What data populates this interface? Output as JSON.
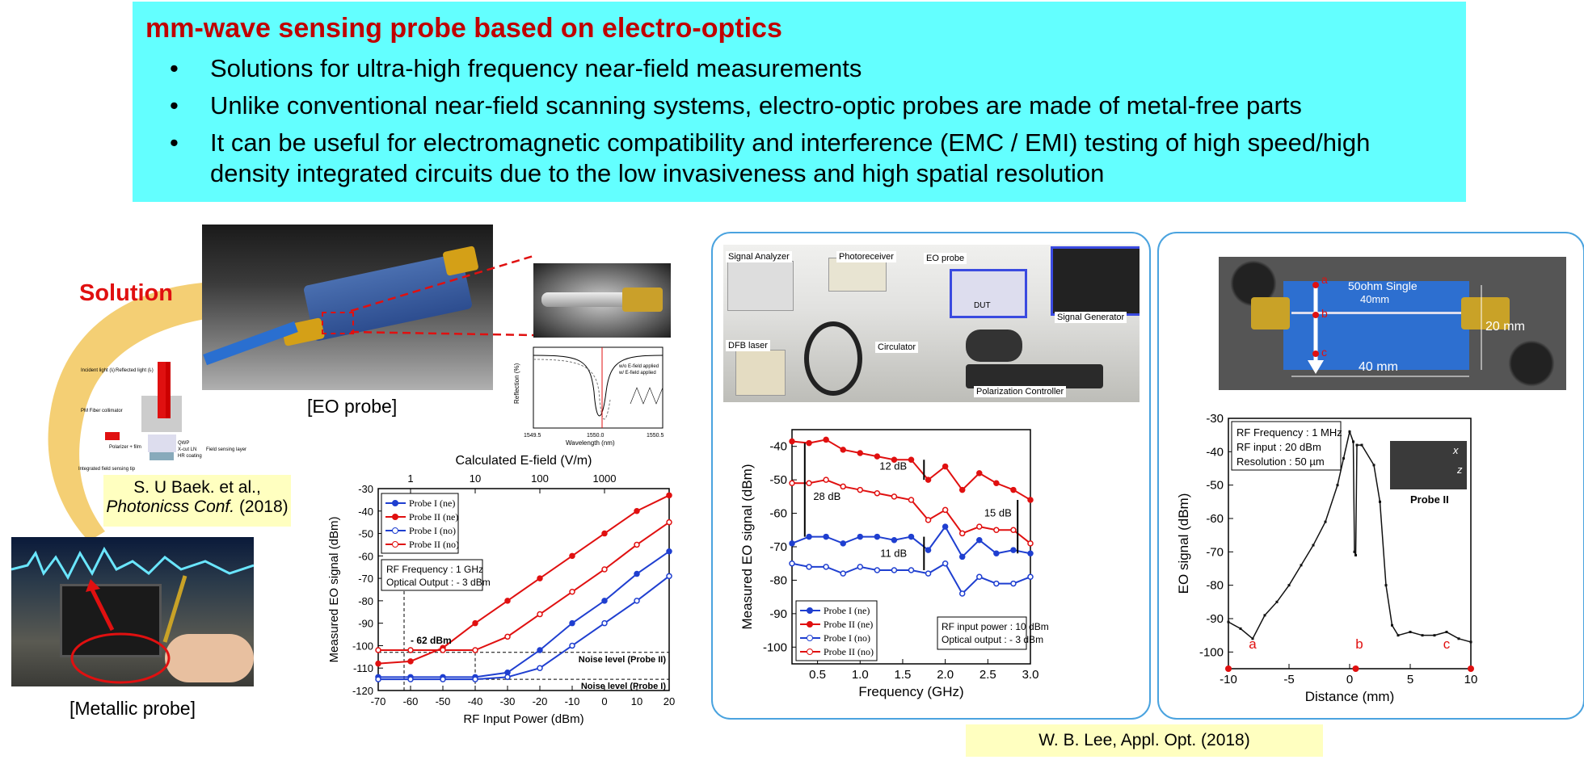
{
  "header": {
    "title": "mm-wave sensing probe based on electro-optics",
    "bullets": [
      "Solutions for ultra-high frequency near-field measurements",
      "Unlike conventional near-field scanning systems, electro-optic probes are made of metal-free parts",
      "It can be useful for electromagnetic compatibility and interference (EMC / EMI) testing of high speed/high density integrated circuits due to the low invasiveness and high spatial resolution"
    ]
  },
  "left": {
    "solution_label": "Solution",
    "eo_probe_caption": "[EO probe]",
    "metallic_probe_caption": "[Metallic probe]",
    "citation_line1": "S. U Baek. et al.,",
    "citation_journal": "Photonicss Conf.",
    "citation_year": " (2018)",
    "schematic": {
      "incident": "Incident light (Iᵢ)",
      "reflected": "Reflected light (Iᵣ)",
      "collimator": "PM Fiber collimator",
      "polarizer": "Polarizer + film",
      "qwp": "QWP",
      "xcut": "X-cut LN",
      "hr": "HR coating",
      "sensing_tip": "Integrated field sensing tip",
      "field_layer": "Field sensing layer"
    },
    "inset": {
      "ylabel": "Reflection (%)",
      "xlabel": "Wavelength (nm)",
      "tick_left": "1549.5",
      "tick_mid": "1550.0",
      "tick_right": "1550.5",
      "legend_a": "w/o E-field applied",
      "legend_b": "w/ E-field applied"
    }
  },
  "colors": {
    "probe_ne": "#1f3fd0",
    "probe2_ne": "#e01010",
    "accent_red": "#c00000",
    "header_bg": "#63ffff",
    "panel_border": "#4aa3df"
  },
  "chart1": {
    "title": "Calculated E-field (V/m)",
    "top_ticks": [
      "1",
      "10",
      "100",
      "1000"
    ],
    "xlabel": "RF Input Power (dBm)",
    "ylabel": "Measured EO signal (dBm)",
    "xticks": [
      "-70",
      "-60",
      "-50",
      "-40",
      "-30",
      "-20",
      "-10",
      "0",
      "10",
      "20"
    ],
    "yticks": [
      "-30",
      "-40",
      "-50",
      "-60",
      "-70",
      "-80",
      "-90",
      "-100",
      "-110",
      "-120"
    ],
    "legend": [
      "Probe I  (ne)",
      "Probe II (ne)",
      "Probe I  (no)",
      "Probe II (no)"
    ],
    "box_line1": "RF Frequency : 1 GHz",
    "box_line2": "Optical Output : - 3 dBm",
    "annot_62": "- 62 dBm",
    "noise2": "Noise level (Probe II)",
    "noise1": "Noise level (Probe I)"
  },
  "chart_data": [
    {
      "type": "line",
      "title": "",
      "top_axis_label": "Calculated E-field (V/m)",
      "xlabel": "RF Input Power (dBm)",
      "ylabel": "Measured EO signal (dBm)",
      "xlim": [
        -70,
        20
      ],
      "ylim": [
        -120,
        -30
      ],
      "x": [
        -70,
        -60,
        -50,
        -40,
        -30,
        -20,
        -10,
        0,
        10,
        20
      ],
      "series": [
        {
          "name": "Probe I (ne)",
          "values": [
            -114,
            -114,
            -114,
            -114,
            -112,
            -102,
            -90,
            -80,
            -68,
            -58
          ]
        },
        {
          "name": "Probe II (ne)",
          "values": [
            -108,
            -107,
            -101,
            -90,
            -80,
            -70,
            -60,
            -50,
            -40,
            -33
          ]
        },
        {
          "name": "Probe I (no)",
          "values": [
            -115,
            -115,
            -115,
            -115,
            -114,
            -110,
            -100,
            -90,
            -80,
            -69
          ]
        },
        {
          "name": "Probe II (no)",
          "values": [
            -102,
            -102,
            -102,
            -102,
            -96,
            -86,
            -76,
            -66,
            -55,
            -45
          ]
        }
      ]
    },
    {
      "type": "line",
      "title": "",
      "xlabel": "Frequency (GHz)",
      "ylabel": "Measured EO signal (dBm)",
      "xlim": [
        0.2,
        3.0
      ],
      "ylim": [
        -105,
        -35
      ],
      "x": [
        0.2,
        0.4,
        0.6,
        0.8,
        1.0,
        1.2,
        1.4,
        1.6,
        1.8,
        2.0,
        2.2,
        2.4,
        2.6,
        2.8,
        3.0
      ],
      "series": [
        {
          "name": "Probe I (ne)",
          "values": [
            -69,
            -67,
            -67,
            -69,
            -67,
            -67,
            -68,
            -67,
            -71,
            -64,
            -73,
            -68,
            -72,
            -71,
            -72
          ]
        },
        {
          "name": "Probe II (ne)",
          "values": [
            -38.5,
            -39,
            -38,
            -41,
            -42,
            -43,
            -44,
            -44,
            -50,
            -46,
            -53,
            -48,
            -51,
            -53,
            -56
          ]
        },
        {
          "name": "Probe I (no)",
          "values": [
            -75,
            -76,
            -76,
            -78,
            -76,
            -77,
            -77,
            -77,
            -78,
            -75,
            -84,
            -79,
            -81,
            -81,
            -79
          ]
        },
        {
          "name": "Probe II (no)",
          "values": [
            -51,
            -51,
            -50,
            -52,
            -53,
            -54,
            -55,
            -56,
            -62,
            -59,
            -66,
            -64,
            -65,
            -65,
            -69
          ]
        }
      ]
    },
    {
      "type": "scatter",
      "title": "",
      "xlabel": "Distance (mm)",
      "ylabel": "EO signal (dBm)",
      "xlim": [
        -10,
        10
      ],
      "ylim": [
        -105,
        -30
      ],
      "series": [
        {
          "name": "",
          "x": [
            -10,
            -9,
            -8,
            -7,
            -6,
            -5,
            -4,
            -3,
            -2,
            -1,
            -0.5,
            0,
            0.3,
            0.4,
            0.5,
            0.6,
            1,
            2,
            2.5,
            3,
            3.5,
            4,
            5,
            6,
            7,
            8,
            9,
            10
          ],
          "values": [
            -91,
            -93,
            -96,
            -89,
            -85,
            -80,
            -74,
            -68,
            -61,
            -50,
            -42,
            -34,
            -37,
            -70,
            -71,
            -38,
            -38,
            -44,
            -55,
            -80,
            -92,
            -95,
            -94,
            -95,
            -95,
            -94,
            -96,
            -97
          ]
        }
      ]
    }
  ],
  "chart2": {
    "xlabel": "Frequency (GHz)",
    "ylabel": "Measured EO signal (dBm)",
    "xticks": [
      "0.5",
      "1.0",
      "1.5",
      "2.0",
      "2.5",
      "3.0"
    ],
    "yticks": [
      "-40",
      "-50",
      "-60",
      "-70",
      "-80",
      "-90",
      "-100"
    ],
    "legend": [
      "Probe I  (ne)",
      "Probe II (ne)",
      "Probe I  (no)",
      "Probe II (no)"
    ],
    "box_line1": "RF input power : 10 dBm",
    "box_line2": "Optical output : - 3 dBm",
    "a12": "12 dB",
    "a28": "28 dB",
    "a15": "15 dB",
    "a11": "11 dB"
  },
  "setup_photo": {
    "signal_analyzer": "Signal Analyzer",
    "photoreceiver": "Photoreceiver",
    "eo_probe": "EO probe",
    "dut": "DUT",
    "signal_generator": "Signal Generator",
    "dfb_laser": "DFB laser",
    "circulator": "Circulator",
    "polarization_controller": "Polarization Controller"
  },
  "chart3": {
    "xlabel": "Distance (mm)",
    "ylabel": "EO signal (dBm)",
    "xticks": [
      "-10",
      "-5",
      "0",
      "5",
      "10"
    ],
    "yticks": [
      "-30",
      "-40",
      "-50",
      "-60",
      "-70",
      "-80",
      "-90",
      "-100"
    ],
    "box_line1": "RF Frequency : 1 MHz",
    "box_line2": "RF input : 20 dBm",
    "box_line3": "Resolution : 50 µm",
    "probe2_label": "Probe II",
    "axis_x": "x",
    "axis_z": "z",
    "pt_a": "a",
    "pt_b": "b",
    "pt_c": "c"
  },
  "board_photo": {
    "label": "50ohm Single",
    "length_top": "40mm",
    "length_bottom": "40 mm",
    "height": "20 mm",
    "a": "a",
    "b": "b",
    "c": "c"
  },
  "bottom_citation": "W. B. Lee, Appl. Opt. (2018)"
}
